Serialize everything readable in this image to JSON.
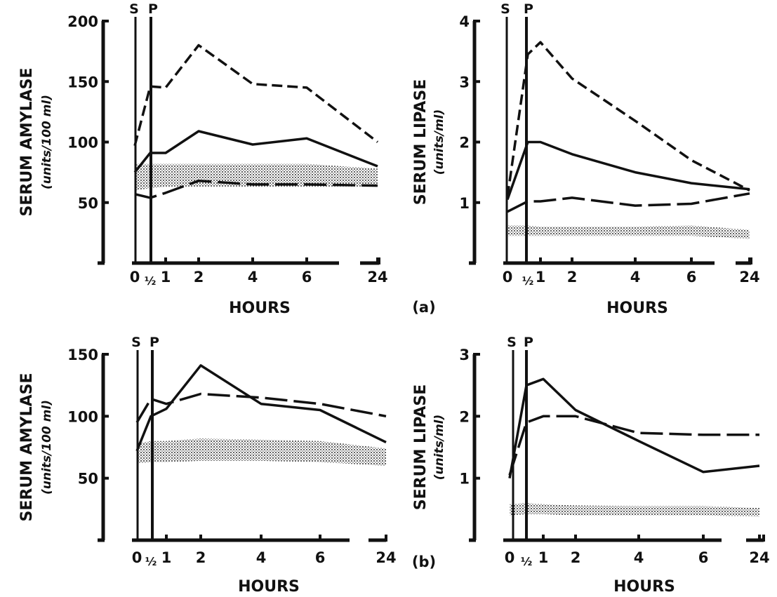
{
  "figure": {
    "panel_labels": [
      "(a)",
      "(b)"
    ],
    "marker_labels": {
      "s": "S",
      "p": "P"
    },
    "x_tick_labels": [
      "0",
      "½",
      "1",
      "2",
      "4",
      "6",
      "24"
    ]
  },
  "chart_data": [
    {
      "type": "line",
      "ylabel": "SERUM AMYLASE",
      "yunit": "(units/100 ml)",
      "xlabel": "HOURS",
      "ylim": [
        0,
        200
      ],
      "yticks": [
        50,
        100,
        150,
        200
      ],
      "x_ticks": [
        0,
        0.5,
        1,
        2,
        4,
        6,
        24
      ],
      "series": [
        {
          "style": "short-dash",
          "x": [
            0,
            0.5,
            1,
            2,
            4,
            6,
            24
          ],
          "values": [
            97,
            146,
            145,
            180,
            148,
            145,
            100
          ]
        },
        {
          "style": "solid",
          "x": [
            0,
            0.5,
            1,
            2,
            4,
            6,
            24
          ],
          "values": [
            75,
            91,
            91,
            109,
            98,
            103,
            80
          ]
        },
        {
          "style": "long-dash",
          "x": [
            0,
            0.5,
            1,
            2,
            4,
            6,
            24
          ],
          "values": [
            57,
            54,
            58,
            68,
            65,
            65,
            64
          ]
        }
      ],
      "normal_band": {
        "low": [
          60,
          62,
          63,
          63,
          63,
          63,
          63
        ],
        "high": [
          82,
          82,
          82,
          82,
          82,
          82,
          78
        ]
      }
    },
    {
      "type": "line",
      "ylabel": "SERUM LIPASE",
      "yunit": "(units/ml)",
      "xlabel": "HOURS",
      "ylim": [
        0,
        4
      ],
      "yticks": [
        1,
        2,
        3,
        4
      ],
      "x_ticks": [
        0,
        0.5,
        1,
        2,
        4,
        6,
        24
      ],
      "series": [
        {
          "style": "short-dash",
          "x": [
            0,
            0.5,
            1,
            2,
            4,
            6,
            24
          ],
          "values": [
            1.1,
            3.45,
            3.65,
            3.05,
            2.35,
            1.7,
            1.2
          ]
        },
        {
          "style": "solid",
          "x": [
            0,
            0.5,
            1,
            2,
            4,
            6,
            24
          ],
          "values": [
            1.05,
            2.0,
            2.0,
            1.8,
            1.5,
            1.32,
            1.22
          ]
        },
        {
          "style": "long-dash",
          "x": [
            0,
            0.5,
            1,
            2,
            4,
            6,
            24
          ],
          "values": [
            0.85,
            1.02,
            1.02,
            1.08,
            0.95,
            0.98,
            1.15
          ]
        }
      ],
      "normal_band": {
        "low": [
          0.45,
          0.45,
          0.45,
          0.45,
          0.45,
          0.45,
          0.4
        ],
        "high": [
          0.62,
          0.62,
          0.6,
          0.6,
          0.6,
          0.62,
          0.55
        ]
      }
    },
    {
      "type": "line",
      "ylabel": "SERUM AMYLASE",
      "yunit": "(units/100 ml)",
      "xlabel": "HOURS",
      "ylim": [
        0,
        150
      ],
      "yticks": [
        50,
        100,
        150
      ],
      "x_ticks": [
        0,
        0.5,
        1,
        2,
        4,
        6,
        24
      ],
      "series": [
        {
          "style": "solid",
          "x": [
            0,
            0.5,
            1,
            2,
            4,
            6,
            24
          ],
          "values": [
            72,
            100,
            106,
            141,
            110,
            105,
            79
          ]
        },
        {
          "style": "long-dash",
          "x": [
            0,
            0.5,
            1,
            2,
            4,
            6,
            24
          ],
          "values": [
            95,
            114,
            110,
            118,
            115,
            110,
            100
          ]
        }
      ],
      "normal_band": {
        "low": [
          62,
          63,
          63,
          64,
          64,
          63,
          60
        ],
        "high": [
          78,
          80,
          80,
          82,
          81,
          80,
          74
        ]
      }
    },
    {
      "type": "line",
      "ylabel": "SERUM LIPASE",
      "yunit": "(units/ml)",
      "xlabel": "HOURS",
      "ylim": [
        0,
        3
      ],
      "yticks": [
        1,
        2,
        3
      ],
      "x_ticks": [
        0,
        0.5,
        1,
        2,
        4,
        6,
        24
      ],
      "series": [
        {
          "style": "solid",
          "x": [
            0,
            0.5,
            1,
            2,
            4,
            6,
            24
          ],
          "values": [
            1.0,
            2.5,
            2.6,
            2.1,
            1.6,
            1.1,
            1.2
          ]
        },
        {
          "style": "long-dash",
          "x": [
            0,
            0.5,
            1,
            2,
            4,
            6,
            24
          ],
          "values": [
            1.05,
            1.9,
            2.0,
            2.0,
            1.73,
            1.7,
            1.7
          ]
        }
      ],
      "normal_band": {
        "low": [
          0.4,
          0.42,
          0.42,
          0.4,
          0.4,
          0.4,
          0.38
        ],
        "high": [
          0.58,
          0.6,
          0.58,
          0.56,
          0.55,
          0.55,
          0.52
        ]
      }
    }
  ]
}
